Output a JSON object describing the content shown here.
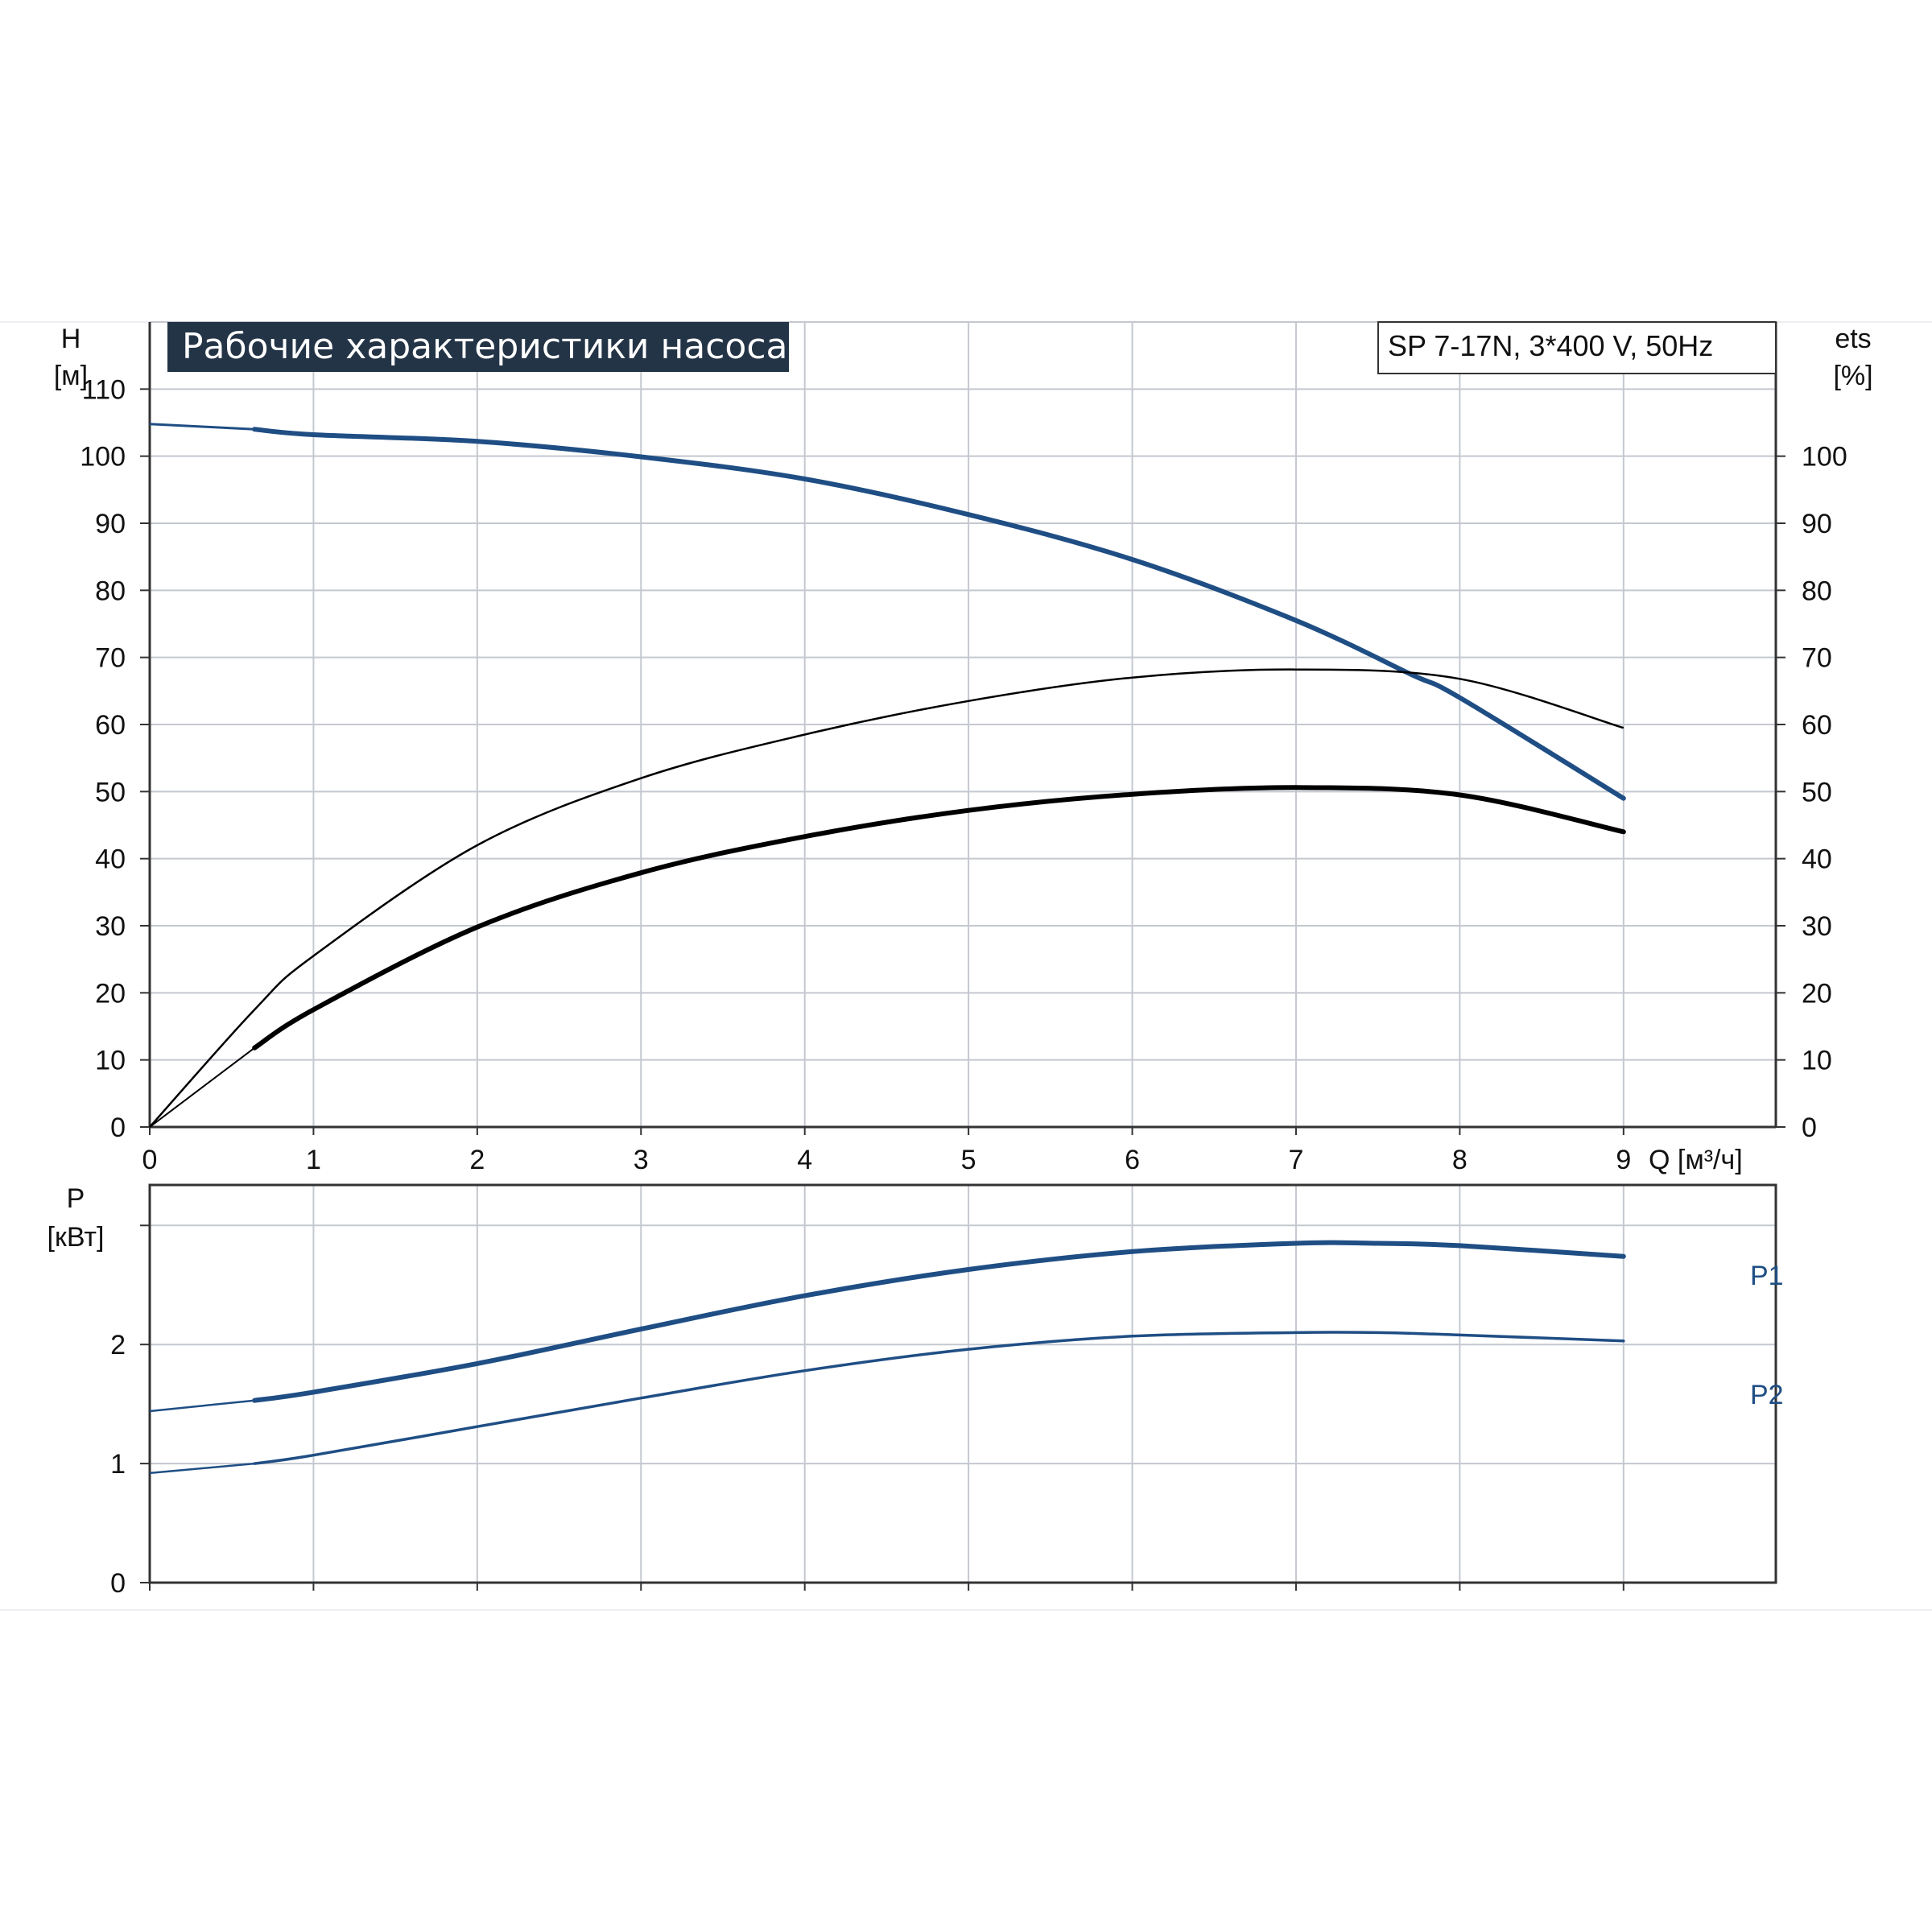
{
  "chart_data": [
    {
      "type": "line",
      "title": "Рабочие характеристики насоса",
      "model_label": "SP 7-17N, 3*400 V, 50Hz",
      "ylabel_left": "H",
      "ylabel_left_unit": "[м]",
      "ylabel_right": "ets",
      "ylabel_right_unit": "[%]",
      "xlabel": "Q [м³/ч]",
      "xlim": [
        0,
        9.93
      ],
      "ylim": [
        0,
        120
      ],
      "x_ticks": [
        "0",
        "1",
        "2",
        "3",
        "4",
        "5",
        "6",
        "7",
        "8",
        "9"
      ],
      "y_ticks_left": [
        "0",
        "10",
        "20",
        "30",
        "40",
        "50",
        "60",
        "70",
        "80",
        "90",
        "100",
        "110"
      ],
      "y_ticks_right": [
        "0",
        "10",
        "20",
        "30",
        "40",
        "50",
        "60",
        "70",
        "80",
        "90",
        "100"
      ],
      "grid": true,
      "colors": {
        "head": "#1f4e84",
        "efficiency": "#000000",
        "grid": "#c4c8cf",
        "title_bg": "#243447"
      },
      "series": [
        {
          "key": "head",
          "x": [
            0,
            0.64,
            1,
            2,
            3,
            4,
            5,
            6,
            7,
            7.7,
            8,
            9
          ],
          "y": [
            104.8,
            104,
            103.2,
            102.2,
            99.9,
            96.6,
            91.3,
            84.6,
            75.5,
            67.5,
            64,
            49
          ]
        },
        {
          "key": "efficiency_upper",
          "x": [
            0,
            0.64,
            1,
            2,
            3,
            4,
            5,
            6,
            7,
            8,
            9
          ],
          "y": [
            0,
            17.5,
            25.5,
            42,
            52,
            58.5,
            63.5,
            67,
            68.2,
            66.8,
            59.5
          ]
        },
        {
          "key": "efficiency_lower",
          "x": [
            0,
            0.64,
            1,
            2,
            3,
            4,
            5,
            6,
            7,
            8,
            9
          ],
          "y": [
            0,
            11.8,
            17.5,
            29.8,
            37.9,
            43.3,
            47.2,
            49.6,
            50.6,
            49.5,
            44
          ]
        }
      ]
    },
    {
      "type": "line",
      "ylabel": "P",
      "ylabel_unit": "[кВт]",
      "xlim": [
        0,
        9.93
      ],
      "ylim": [
        0,
        3.34
      ],
      "y_ticks": [
        "0",
        "1",
        "2"
      ],
      "grid": true,
      "colors": {
        "P1": "#1f4e84",
        "P2": "#1f4e84",
        "label": "#1f4e84"
      },
      "series": [
        {
          "name": "P1",
          "x": [
            0,
            0.64,
            1,
            2,
            3,
            4,
            5,
            6,
            7,
            7.5,
            8,
            9
          ],
          "y": [
            1.44,
            1.53,
            1.6,
            1.84,
            2.13,
            2.41,
            2.63,
            2.78,
            2.85,
            2.85,
            2.83,
            2.74
          ]
        },
        {
          "name": "P2",
          "x": [
            0,
            0.64,
            1,
            2,
            3,
            4,
            5,
            6,
            7,
            7.5,
            8,
            9
          ],
          "y": [
            0.92,
            1.0,
            1.07,
            1.31,
            1.55,
            1.78,
            1.96,
            2.07,
            2.1,
            2.1,
            2.08,
            2.03
          ]
        }
      ]
    }
  ]
}
